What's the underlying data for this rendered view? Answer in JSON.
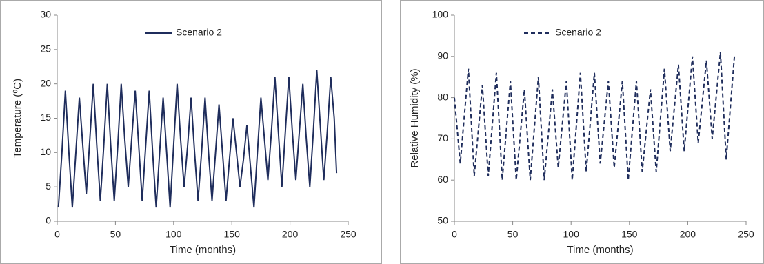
{
  "chart_data": [
    {
      "type": "line",
      "xlabel": "Time (months)",
      "ylabel": "Temperature (⁰C)",
      "xlim": [
        0,
        250
      ],
      "xticks": [
        0,
        50,
        100,
        150,
        200,
        250
      ],
      "ylim": [
        0,
        30
      ],
      "yticks": [
        0,
        5,
        10,
        15,
        20,
        25,
        30
      ],
      "x": [
        1,
        4,
        7,
        10,
        13,
        16,
        19,
        22,
        25,
        28,
        31,
        34,
        37,
        40,
        43,
        46,
        49,
        52,
        55,
        58,
        61,
        64,
        67,
        70,
        73,
        76,
        79,
        82,
        85,
        88,
        91,
        94,
        97,
        100,
        103,
        106,
        109,
        112,
        115,
        118,
        121,
        124,
        127,
        130,
        133,
        136,
        139,
        142,
        145,
        148,
        151,
        154,
        157,
        160,
        163,
        166,
        169,
        172,
        175,
        178,
        181,
        184,
        187,
        190,
        193,
        196,
        199,
        202,
        205,
        208,
        211,
        214,
        217,
        220,
        223,
        226,
        229,
        232,
        235,
        238,
        240
      ],
      "series": [
        {
          "name": "Scenario 2",
          "color": "#1f2d5c",
          "dashed": false,
          "values": [
            2,
            10,
            19,
            10,
            2,
            10,
            18,
            11,
            4,
            12,
            20,
            11,
            3,
            11,
            20,
            11,
            3,
            11,
            20,
            12,
            5,
            12,
            19,
            11,
            3,
            11,
            19,
            10,
            2,
            10,
            18,
            10,
            2,
            11,
            20,
            12,
            5,
            11,
            18,
            10,
            3,
            10,
            18,
            10,
            3,
            10,
            17,
            10,
            3,
            9,
            15,
            10,
            5,
            9,
            14,
            8,
            2,
            10,
            18,
            12,
            6,
            13,
            21,
            13,
            5,
            13,
            21,
            13,
            6,
            13,
            20,
            12,
            5,
            13,
            22,
            14,
            6,
            13,
            21,
            15,
            7
          ]
        }
      ]
    },
    {
      "type": "line",
      "xlabel": "Time (months)",
      "ylabel": "Relative Humidity (%)",
      "xlim": [
        0,
        250
      ],
      "xticks": [
        0,
        50,
        100,
        150,
        200,
        250
      ],
      "ylim": [
        50,
        100
      ],
      "yticks": [
        50,
        60,
        70,
        80,
        90,
        100
      ],
      "x": [
        0,
        5,
        12,
        17,
        24,
        29,
        36,
        41,
        48,
        53,
        60,
        65,
        72,
        77,
        84,
        89,
        96,
        101,
        108,
        113,
        120,
        125,
        132,
        137,
        144,
        149,
        156,
        161,
        168,
        173,
        180,
        185,
        192,
        197,
        204,
        209,
        216,
        221,
        228,
        233,
        240
      ],
      "series": [
        {
          "name": "Scenario 2",
          "color": "#1f2d5c",
          "dashed": true,
          "values": [
            80,
            64,
            87,
            61,
            83,
            61,
            86,
            60,
            84,
            60,
            82,
            60,
            85,
            60,
            82,
            63,
            84,
            60,
            86,
            62,
            86,
            64,
            84,
            63,
            84,
            60,
            84,
            62,
            82,
            62,
            87,
            67,
            88,
            67,
            90,
            69,
            89,
            70,
            91,
            65,
            90
          ]
        }
      ]
    }
  ]
}
